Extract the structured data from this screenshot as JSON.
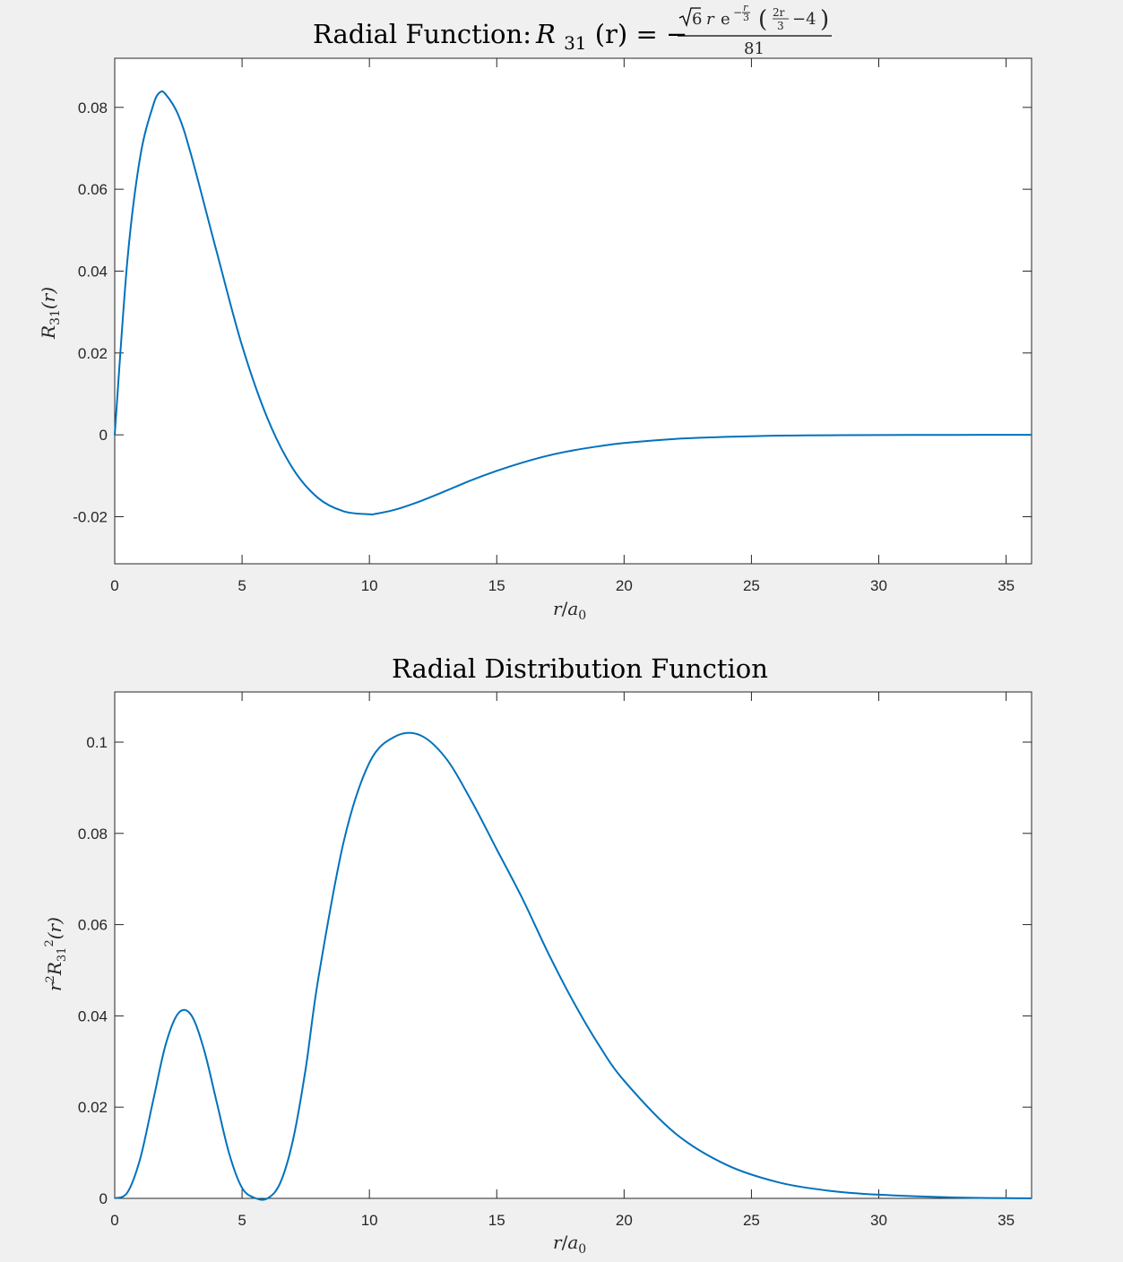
{
  "colors": {
    "series": "#0072bd",
    "figure_background": "#f0f0f0",
    "axes_background": "#ffffff",
    "axis": "#262626"
  },
  "chart_data": [
    {
      "type": "line",
      "title": "Radial Function: R31(r) = −(√6 r e^(−r/3) (2r/3 − 4)) / 81",
      "title_parts": {
        "lead": "Radial Function:",
        "lhs_symbol": "R",
        "lhs_sub": "31",
        "lhs_arg": "(r) = −",
        "num_sqrt": "6",
        "num_r": "r",
        "num_e": "e",
        "num_exp_minus": "−",
        "num_exp_r": "r",
        "num_exp_den": "3",
        "paren_left": "(",
        "inner_num": "2r",
        "inner_den": "3",
        "inner_rest": "−4",
        "paren_right": ")",
        "denominator": "81"
      },
      "xlabel": "r/a0",
      "xlabel_parts": {
        "r": "r",
        "slash": "/",
        "a": "a",
        "sub": "0"
      },
      "ylabel": "R31(r)",
      "ylabel_parts": {
        "R": "R",
        "sub": "31",
        "arg": "(r)"
      },
      "xlim": [
        0,
        36
      ],
      "ylim": [
        -0.0315,
        0.092
      ],
      "xticks": [
        0,
        5,
        10,
        15,
        20,
        25,
        30,
        35
      ],
      "xtick_labels": [
        "0",
        "5",
        "10",
        "15",
        "20",
        "25",
        "30",
        "35"
      ],
      "yticks": [
        -0.02,
        0,
        0.02,
        0.04,
        0.06,
        0.08
      ],
      "ytick_labels": [
        "-0.02",
        "0",
        "0.02",
        "0.04",
        "0.06",
        "0.08"
      ],
      "grid": false,
      "legend": "none",
      "x": [
        0,
        0.5,
        1,
        1.5,
        1.76,
        2,
        2.5,
        3,
        4,
        5,
        6,
        7,
        8,
        9,
        10,
        10.24,
        11,
        12,
        13,
        14,
        15,
        16,
        17,
        18,
        19,
        20,
        22,
        24,
        26,
        28,
        30,
        33,
        36
      ],
      "series": [
        {
          "values": [
            0,
            0.0428,
            0.0679,
            0.0803,
            0.0836,
            0.0832,
            0.0781,
            0.0684,
            0.0448,
            0.0218,
            0.004,
            -0.0083,
            -0.0155,
            -0.0187,
            -0.0194,
            -0.0193,
            -0.0183,
            -0.0162,
            -0.0137,
            -0.0111,
            -0.0088,
            -0.0068,
            -0.0051,
            -0.0038,
            -0.0028,
            -0.002,
            -0.001,
            -0.0005,
            -0.0002,
            -0.0001,
            -5e-05,
            -1e-05,
            0
          ]
        }
      ]
    },
    {
      "type": "line",
      "title": "Radial Distribution Function",
      "xlabel": "r/a0",
      "xlabel_parts": {
        "r": "r",
        "slash": "/",
        "a": "a",
        "sub": "0"
      },
      "ylabel": "r2 R31 2(r)",
      "ylabel_parts": {
        "r": "r",
        "sup": "2",
        "R": "R",
        "sub": "31",
        "sup2": "2",
        "arg": "(r)"
      },
      "xlim": [
        0,
        36
      ],
      "ylim": [
        0,
        0.111
      ],
      "xticks": [
        0,
        5,
        10,
        15,
        20,
        25,
        30,
        35
      ],
      "xtick_labels": [
        "0",
        "5",
        "10",
        "15",
        "20",
        "25",
        "30",
        "35"
      ],
      "yticks": [
        0,
        0.02,
        0.04,
        0.06,
        0.08,
        0.1
      ],
      "ytick_labels": [
        "0",
        "0.02",
        "0.04",
        "0.06",
        "0.08",
        "0.1"
      ],
      "grid": false,
      "legend": "none",
      "x": [
        0,
        0.5,
        1,
        1.5,
        2,
        2.5,
        3,
        3.5,
        4,
        4.5,
        5,
        5.5,
        6,
        6.5,
        7,
        7.5,
        8,
        9,
        10,
        11,
        12,
        13,
        14,
        15,
        16,
        17,
        18,
        19,
        20,
        22,
        24,
        26,
        28,
        30,
        33,
        36
      ],
      "series": [
        {
          "values": [
            0,
            0.0013,
            0.0087,
            0.0212,
            0.0337,
            0.0406,
            0.0402,
            0.0327,
            0.0212,
            0.0097,
            0.0023,
            0.0001,
            0,
            0.0034,
            0.0128,
            0.0285,
            0.0484,
            0.0784,
            0.0955,
            0.1012,
            0.1015,
            0.0965,
            0.0872,
            0.0765,
            0.0658,
            0.054,
            0.0432,
            0.0337,
            0.0258,
            0.0143,
            0.0074,
            0.0036,
            0.0017,
            0.0008,
            0.0002,
            0
          ]
        }
      ]
    }
  ]
}
